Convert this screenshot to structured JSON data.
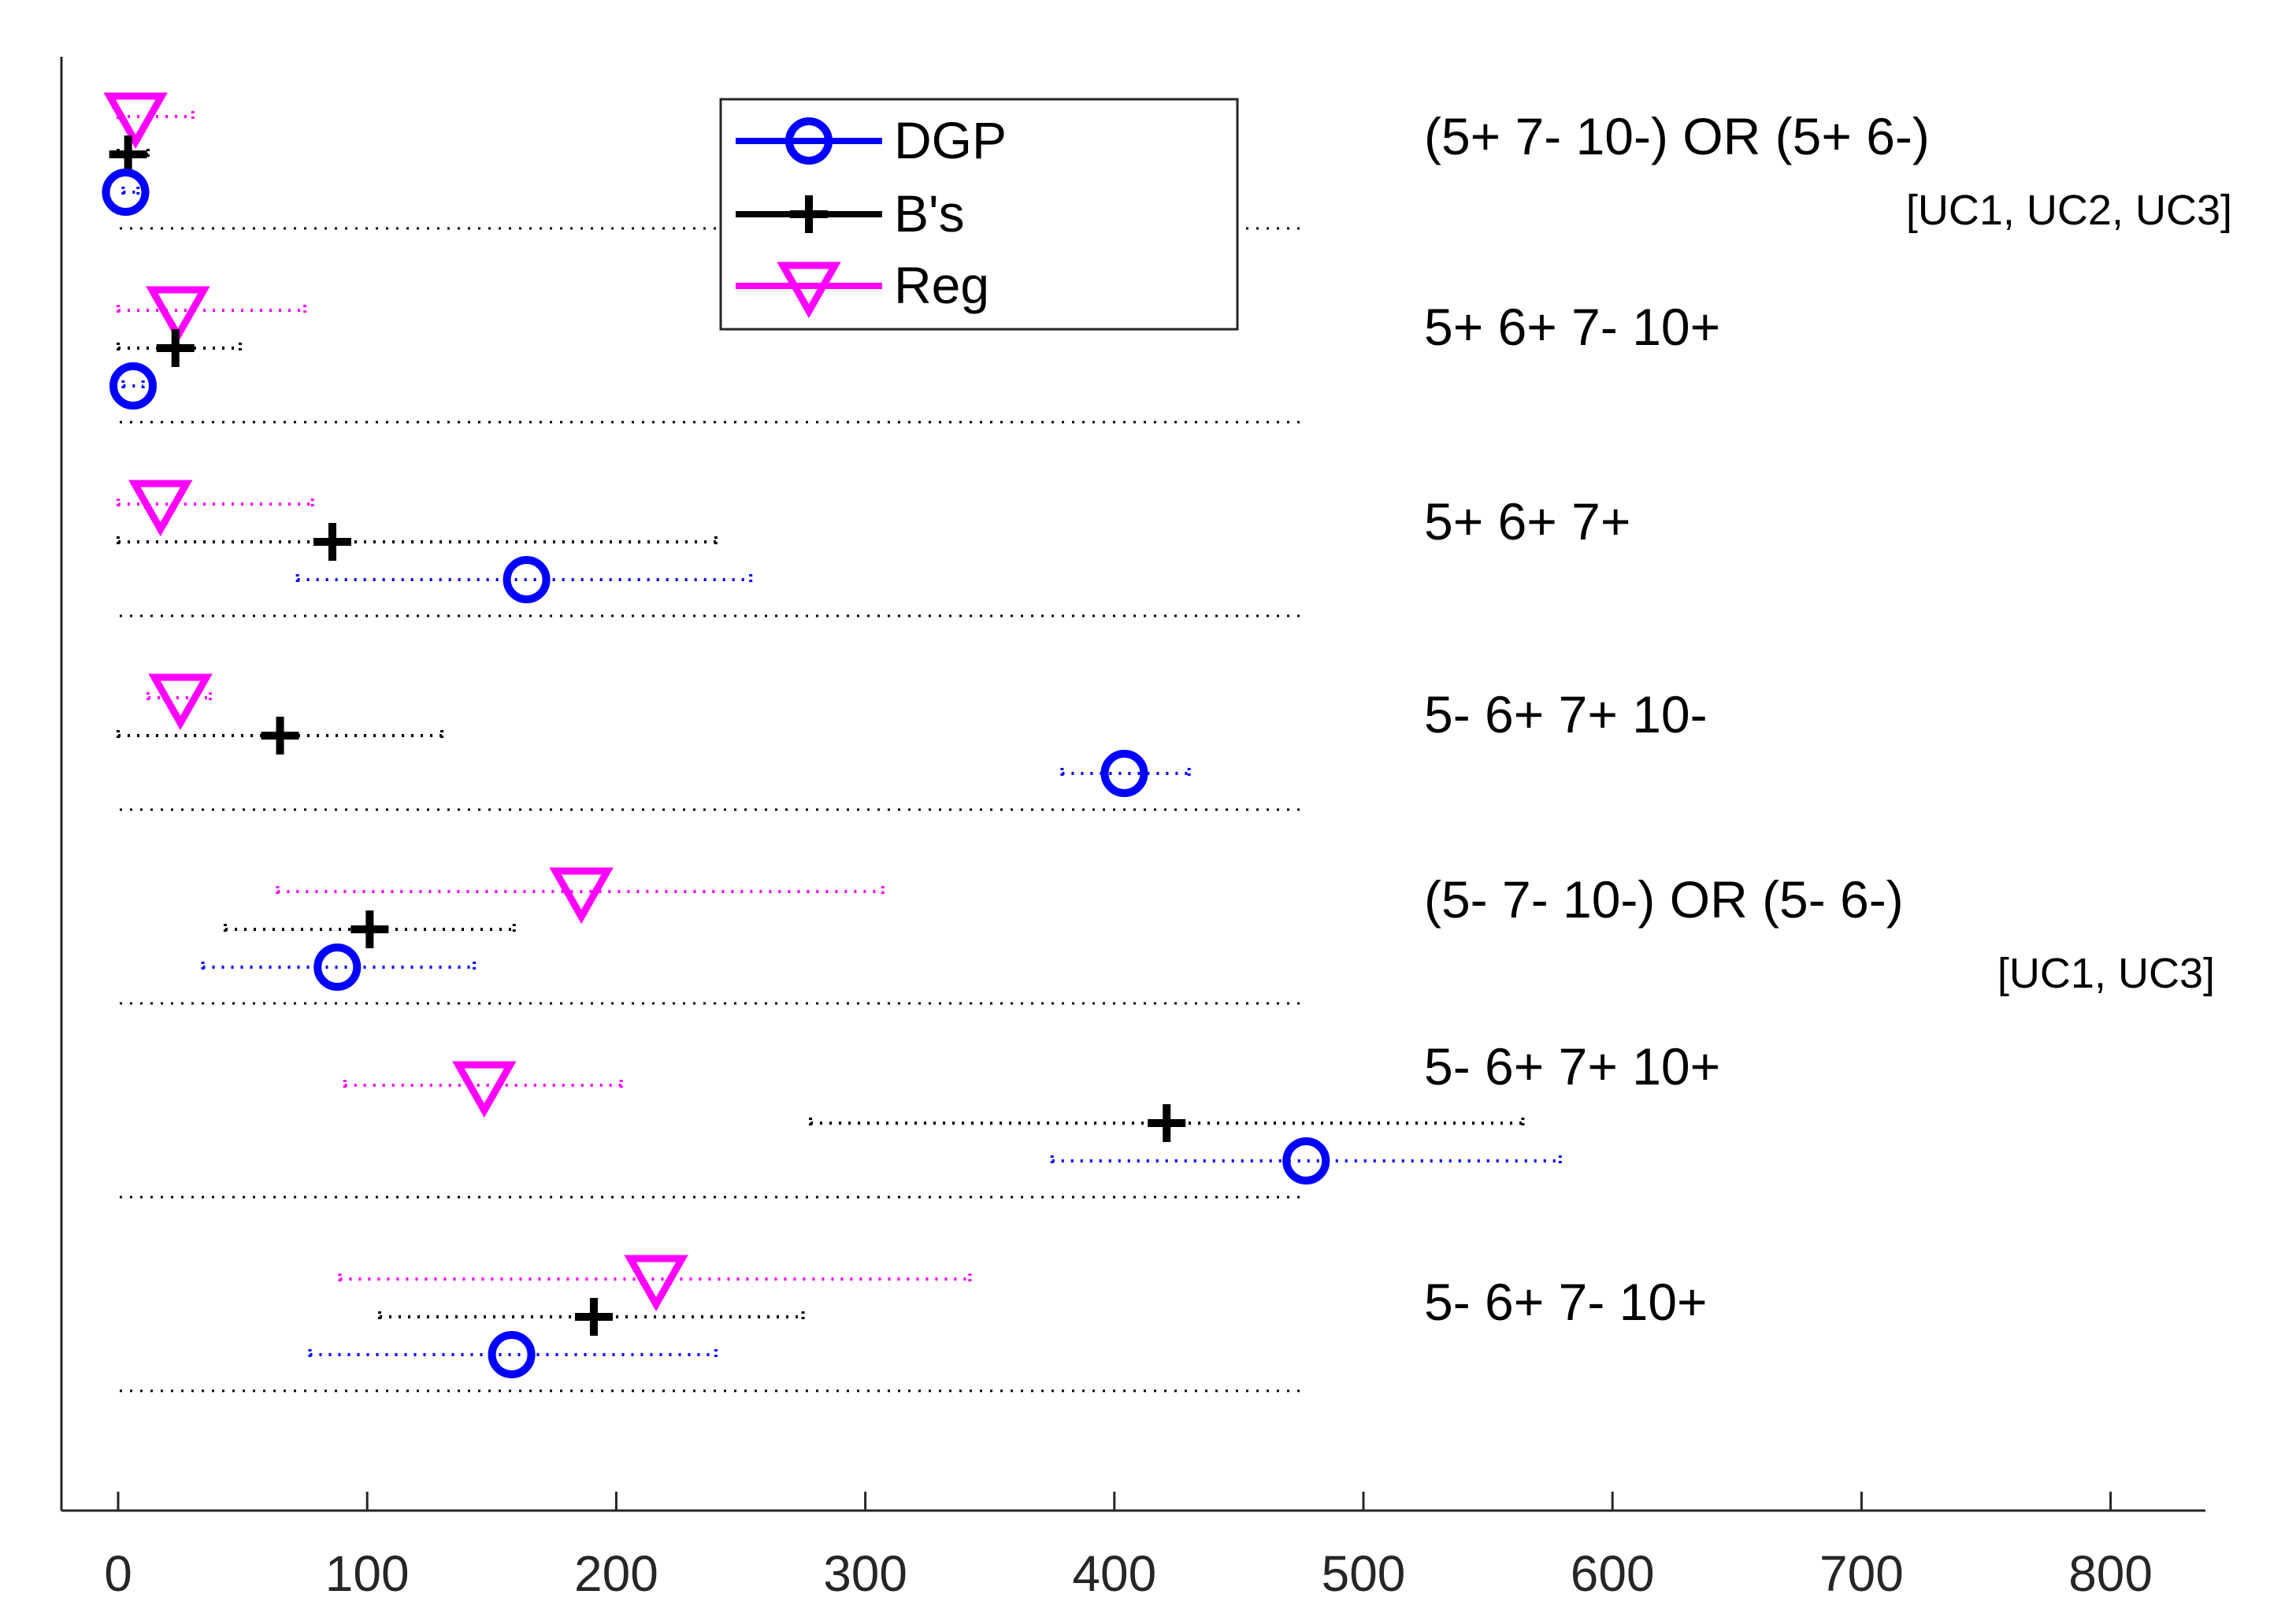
{
  "chart_data": {
    "type": "scatter",
    "subtype": "horizontal-interval-plot",
    "xlim": [
      -22,
      838
    ],
    "xticks": [
      0,
      100,
      200,
      300,
      400,
      500,
      600,
      700,
      800
    ],
    "tick_labels": [
      "0",
      "100",
      "200",
      "300",
      "400",
      "500",
      "600",
      "700",
      "800"
    ],
    "legend_position": "top-center",
    "legend": [
      {
        "key": "dgp",
        "name": "DGP",
        "color": "#0000ff",
        "marker": "circle"
      },
      {
        "key": "bs",
        "name": "B's",
        "color": "#000000",
        "marker": "plus"
      },
      {
        "key": "reg",
        "name": "Reg",
        "color": "#ff00ff",
        "marker": "triangle-down"
      }
    ],
    "groups": [
      {
        "label": "(5+ 7- 10-) OR (5+ 6-)",
        "sublabel": "[UC1, UC2, UC3]",
        "reg": {
          "value": 7,
          "low": 0,
          "high": 30
        },
        "bs": {
          "value": 4,
          "low": 0,
          "high": 12
        },
        "dgp": {
          "value": 3,
          "low": 2,
          "high": 8
        }
      },
      {
        "label": "5+ 6+ 7- 10+",
        "sublabel": "",
        "reg": {
          "value": 24,
          "low": 0,
          "high": 75
        },
        "bs": {
          "value": 23,
          "low": 0,
          "high": 49
        },
        "dgp": {
          "value": 6,
          "low": 2,
          "high": 10
        }
      },
      {
        "label": "5+ 6+ 7+",
        "sublabel": "",
        "reg": {
          "value": 17,
          "low": 0,
          "high": 78
        },
        "bs": {
          "value": 86,
          "low": 0,
          "high": 240
        },
        "dgp": {
          "value": 164,
          "low": 72,
          "high": 254
        }
      },
      {
        "label": "5- 6+ 7+ 10-",
        "sublabel": "",
        "reg": {
          "value": 25,
          "low": 12,
          "high": 37
        },
        "bs": {
          "value": 65,
          "low": 0,
          "high": 130
        },
        "dgp": {
          "value": 404,
          "low": 379,
          "high": 430
        }
      },
      {
        "label": "(5- 7- 10-) OR (5- 6-)",
        "sublabel": "[UC1, UC3]",
        "reg": {
          "value": 186,
          "low": 64,
          "high": 307
        },
        "bs": {
          "value": 101,
          "low": 43,
          "high": 159
        },
        "dgp": {
          "value": 88,
          "low": 34,
          "high": 143
        }
      },
      {
        "label": "5- 6+ 7+ 10+",
        "sublabel": "",
        "reg": {
          "value": 147,
          "low": 91,
          "high": 202
        },
        "bs": {
          "value": 421,
          "low": 278,
          "high": 564
        },
        "dgp": {
          "value": 477,
          "low": 375,
          "high": 579
        }
      },
      {
        "label": "5- 6+ 7- 10+",
        "sublabel": "",
        "reg": {
          "value": 216,
          "low": 89,
          "high": 342
        },
        "bs": {
          "value": 191,
          "low": 105,
          "high": 275
        },
        "dgp": {
          "value": 158,
          "low": 77,
          "high": 240
        }
      }
    ]
  }
}
